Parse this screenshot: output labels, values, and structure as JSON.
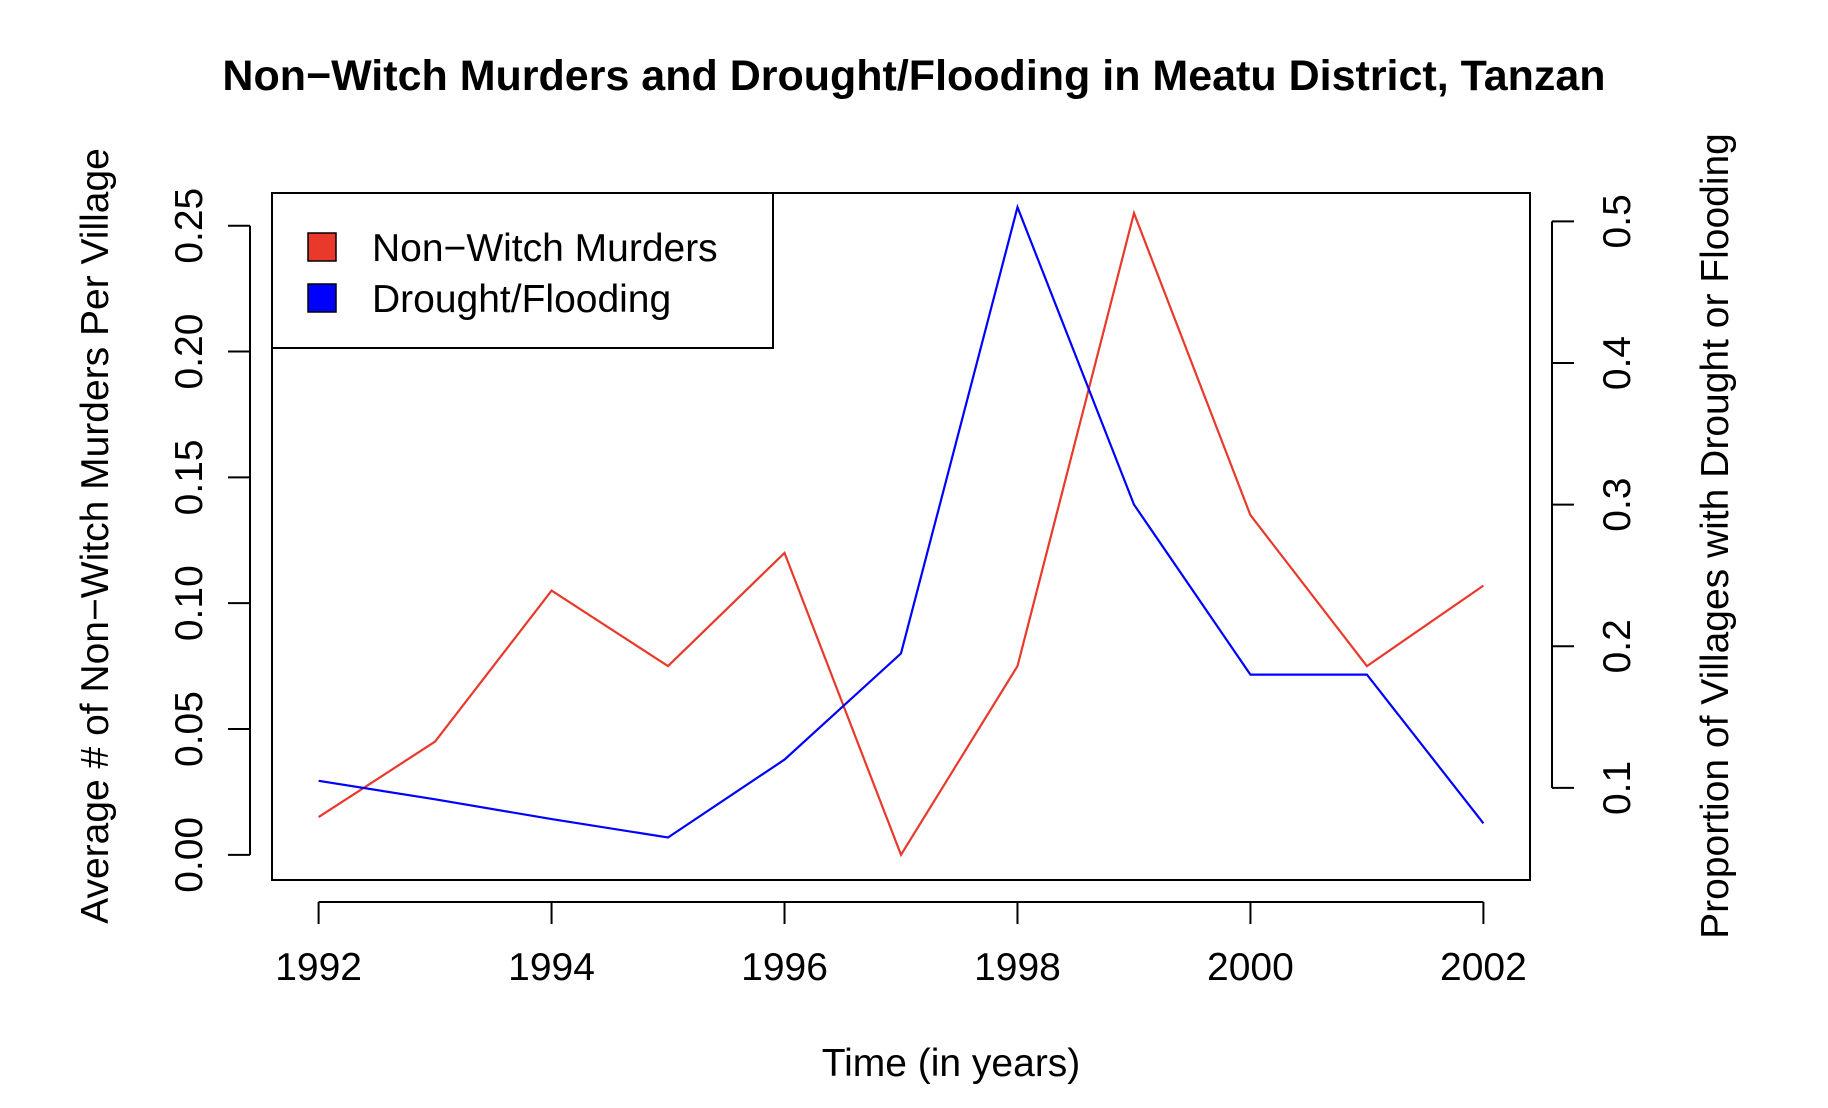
{
  "chart_data": {
    "type": "line",
    "title": "Non−Witch Murders and Drought/Flooding in Meatu District, Tanzan",
    "xlabel": "Time (in years)",
    "ylabel_left": "Average # of Non−Witch Murders Per Village",
    "ylabel_right": "Proportion of Villages with Drought or Flooding",
    "x": [
      1992,
      1993,
      1994,
      1995,
      1996,
      1997,
      1998,
      1999,
      2000,
      2001,
      2002
    ],
    "x_ticks": [
      1992,
      1994,
      1996,
      1998,
      2000,
      2002
    ],
    "x_tick_labels": [
      "1992",
      "1994",
      "1996",
      "1998",
      "2000",
      "2002"
    ],
    "xlim": [
      1991.6,
      2002.4
    ],
    "ylim_left": [
      -0.01,
      0.263
    ],
    "ylim_right": [
      0.035,
      0.52
    ],
    "y_ticks_left": [
      0,
      0.05,
      0.1,
      0.15,
      0.2,
      0.25
    ],
    "y_tick_labels_left": [
      "0.00",
      "0.05",
      "0.10",
      "0.15",
      "0.20",
      "0.25"
    ],
    "y_ticks_right": [
      0.1,
      0.2,
      0.3,
      0.4,
      0.5
    ],
    "y_tick_labels_right": [
      "0.1",
      "0.2",
      "0.3",
      "0.4",
      "0.5"
    ],
    "grid": false,
    "legend_position": "top-left",
    "series": [
      {
        "name": "Non−Witch Murders",
        "axis": "left",
        "color": "#e8392b",
        "values": [
          0.015,
          0.045,
          0.105,
          0.075,
          0.12,
          0.0,
          0.075,
          0.255,
          0.135,
          0.075,
          0.107
        ]
      },
      {
        "name": "Drought/Flooding",
        "axis": "right",
        "color": "#0000ff",
        "values": [
          0.105,
          0.092,
          0.078,
          0.065,
          0.12,
          0.195,
          0.51,
          0.3,
          0.18,
          0.18,
          0.075
        ]
      }
    ]
  }
}
